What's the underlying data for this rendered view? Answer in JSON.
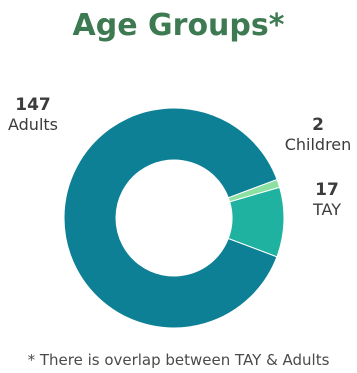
{
  "chart_data": {
    "type": "pie",
    "title": "Age Groups*",
    "categories": [
      "Adults",
      "Children",
      "TAY"
    ],
    "values": [
      147,
      2,
      17
    ],
    "colors": [
      "#0e8096",
      "#8be0a2",
      "#1fb2a0"
    ],
    "donut": true,
    "footnote": "* There is overlap between TAY & Adults"
  },
  "title_color": "#3d7a52"
}
